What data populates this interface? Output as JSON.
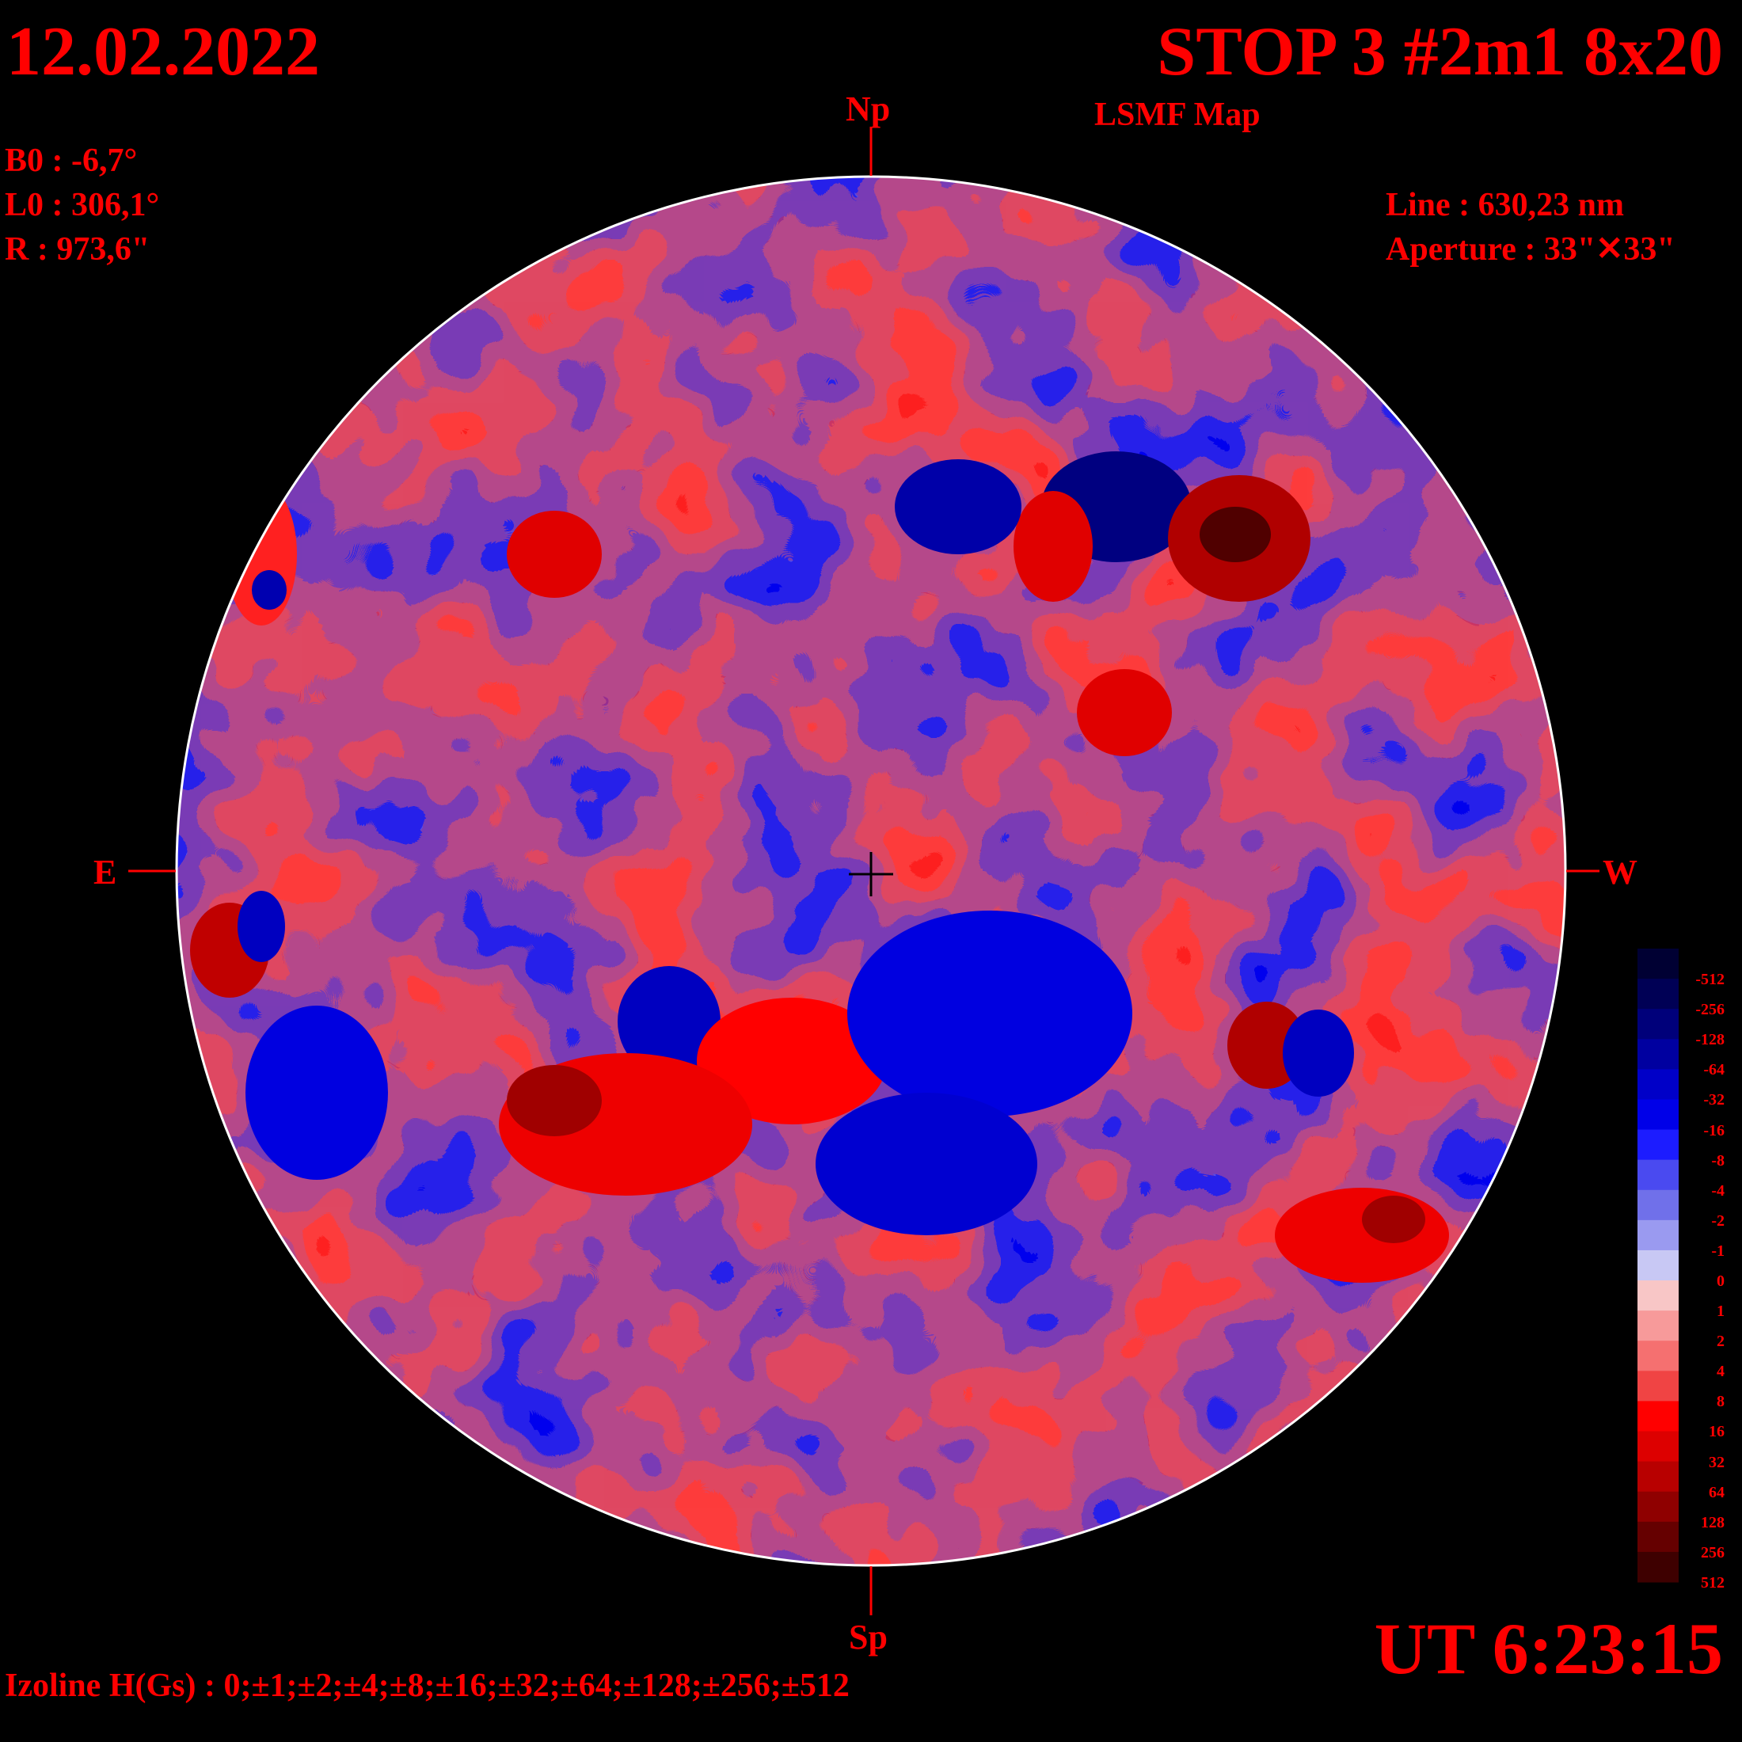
{
  "header": {
    "date": "12.02.2022",
    "title": "STOP 3 #2m1 8x20",
    "subtitle": "LSMF  Map"
  },
  "params_left": {
    "b0": "B0 : -6,7°",
    "l0": "L0 : 306,1°",
    "r": "R  : 973,6\""
  },
  "params_right": {
    "line": "Line :  630,23 nm",
    "aperture": "Aperture : 33\"✕33\""
  },
  "directions": {
    "north": "Np",
    "south": "Sp",
    "east": "E",
    "west": "W"
  },
  "time": "UT 6:23:15",
  "izoline": "Izoline H(Gs) : 0;±1;±2;±4;±8;±16;±32;±64;±128;±256;±512",
  "colorbar": {
    "labels": [
      "-512",
      "-256",
      "-128",
      "-64",
      "-32",
      "-16",
      "-8",
      "-4",
      "-2",
      "-1",
      "0",
      "1",
      "2",
      "4",
      "8",
      "16",
      "32",
      "64",
      "128",
      "256",
      "512"
    ],
    "colors": [
      "#000033",
      "#000055",
      "#00007a",
      "#0000a0",
      "#0000c8",
      "#0000e8",
      "#1c1cff",
      "#4a4af0",
      "#7070ea",
      "#9a9af0",
      "#c8c8f4",
      "#f8c6c6",
      "#f79a9a",
      "#f57070",
      "#f04444",
      "#ff0000",
      "#dd0000",
      "#b80000",
      "#8f0000",
      "#650000",
      "#3e0000"
    ]
  },
  "colors": {
    "text": "#ff0000",
    "background": "#000000",
    "contour": "#ffffff"
  }
}
